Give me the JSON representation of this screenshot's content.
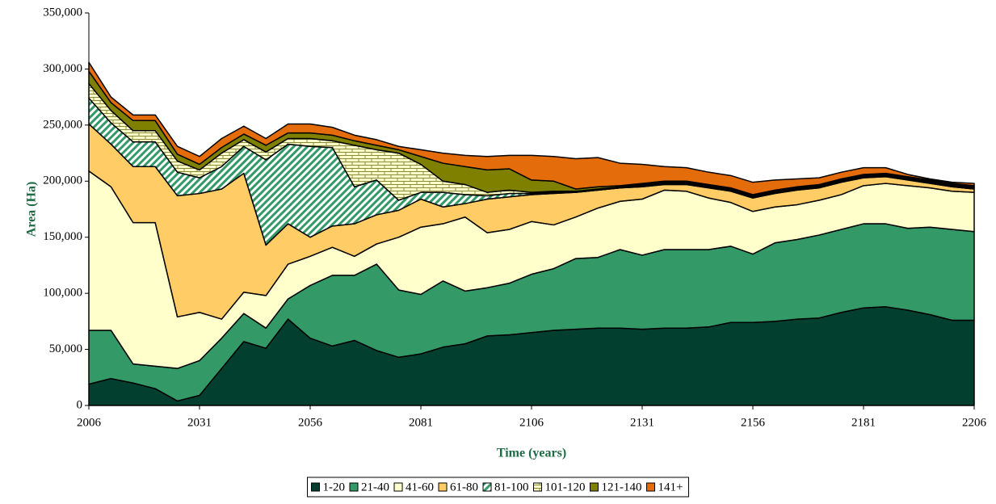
{
  "chart_data": {
    "type": "stacked_area",
    "x_label": "Time (years)",
    "y_label": "Area (Ha)",
    "x": [
      2006,
      2011,
      2016,
      2021,
      2026,
      2031,
      2036,
      2041,
      2046,
      2051,
      2056,
      2061,
      2066,
      2071,
      2076,
      2081,
      2086,
      2091,
      2096,
      2101,
      2106,
      2111,
      2116,
      2121,
      2126,
      2131,
      2136,
      2141,
      2146,
      2151,
      2156,
      2161,
      2166,
      2171,
      2176,
      2181,
      2186,
      2191,
      2196,
      2201,
      2206
    ],
    "xlim": [
      2006,
      2206
    ],
    "xticks": [
      2006,
      2031,
      2056,
      2081,
      2106,
      2131,
      2156,
      2181,
      2206
    ],
    "ylim": [
      0,
      350000
    ],
    "yticks": [
      0,
      {
        "value": 50000,
        "label": "50,000"
      },
      {
        "value": 100000,
        "label": "100,000"
      },
      {
        "value": 150000,
        "label": "150,000"
      },
      {
        "value": 200000,
        "label": "200,000"
      },
      {
        "value": 250000,
        "label": "250,000"
      },
      {
        "value": 300000,
        "label": "300,000"
      },
      {
        "value": 350000,
        "label": "350,000"
      }
    ],
    "legend": "bottom",
    "series": [
      {
        "name": "1-20",
        "color": "#033f2f",
        "values": [
          19000,
          24000,
          20000,
          15000,
          4000,
          9000,
          33000,
          57000,
          51000,
          77000,
          60000,
          53000,
          58000,
          49000,
          43000,
          46000,
          52000,
          55000,
          62000,
          63000,
          65000,
          67000,
          68000,
          69000,
          69000,
          68000,
          69000,
          69000,
          70000,
          74000,
          74000,
          75000,
          77000,
          78000,
          83000,
          87000,
          88000,
          85000,
          81000,
          76000,
          76000
        ]
      },
      {
        "name": "21-40",
        "color": "#339966",
        "values": [
          48000,
          43000,
          17000,
          20000,
          29000,
          31000,
          27000,
          25000,
          18000,
          18000,
          47000,
          63000,
          58000,
          77000,
          60000,
          53000,
          59000,
          47000,
          43000,
          46000,
          52000,
          55000,
          63000,
          63000,
          70000,
          66000,
          70000,
          70000,
          69000,
          68000,
          61000,
          70000,
          71000,
          74000,
          74000,
          75000,
          74000,
          73000,
          78000,
          81000,
          79000
        ]
      },
      {
        "name": "41-60",
        "color": "#ffffcc",
        "values": [
          142000,
          128000,
          126000,
          128000,
          46000,
          43000,
          17000,
          19000,
          29000,
          31000,
          26000,
          25000,
          17000,
          18000,
          47000,
          60000,
          51000,
          66000,
          49000,
          48000,
          47000,
          39000,
          37000,
          44000,
          43000,
          50000,
          53000,
          52000,
          46000,
          39000,
          38000,
          32000,
          31000,
          31000,
          31000,
          34000,
          36000,
          38000,
          35000,
          34000,
          35000
        ]
      },
      {
        "name": "61-80",
        "color": "#ffcc66",
        "values": [
          42000,
          38000,
          50000,
          50000,
          108000,
          106000,
          116000,
          106000,
          45000,
          36000,
          17000,
          19000,
          29000,
          26000,
          24000,
          25000,
          15000,
          12000,
          30000,
          29000,
          24000,
          28000,
          22000,
          16000,
          12000,
          11000,
          5000,
          6000,
          9000,
          10000,
          12000,
          12000,
          13000,
          11000,
          11000,
          7000,
          6000,
          5000,
          4000,
          4000,
          3000
        ]
      },
      {
        "name": "81-100",
        "color": "#339966",
        "pattern": "diagonal",
        "values": [
          23000,
          19000,
          22000,
          22000,
          21000,
          14000,
          20000,
          24000,
          76000,
          71000,
          81000,
          70000,
          33000,
          31000,
          9000,
          6000,
          13000,
          8000,
          3000,
          3000,
          1000,
          1000,
          0,
          0,
          0,
          1000,
          1000,
          1000,
          1000,
          1000,
          1000,
          1000,
          1000,
          1000,
          1000,
          1000,
          1000,
          1000,
          1000,
          1000,
          1000
        ]
      },
      {
        "name": "101-120",
        "color": "#ffffcc",
        "pattern": "brick",
        "values": [
          13000,
          11000,
          10000,
          10000,
          10000,
          7000,
          12000,
          6000,
          7000,
          5000,
          7000,
          6000,
          37000,
          27000,
          42000,
          25000,
          10000,
          9000,
          3000,
          3000,
          1000,
          1000,
          1000,
          1000,
          1000,
          1000,
          1000,
          1000,
          1000,
          1000,
          1000,
          1000,
          1000,
          1000,
          1000,
          1000,
          1000,
          1000,
          1000,
          1000,
          1000
        ]
      },
      {
        "name": "121-140",
        "color": "#808000",
        "values": [
          11000,
          7000,
          9000,
          9000,
          6000,
          5000,
          5000,
          5000,
          6000,
          5000,
          5000,
          5000,
          4000,
          4000,
          3000,
          7000,
          16000,
          16000,
          20000,
          19000,
          11000,
          9000,
          2000,
          2000,
          1000,
          1000,
          1000,
          1000,
          1000,
          1000,
          1000,
          1000,
          1000,
          1000,
          1000,
          1000,
          1000,
          1000,
          1000,
          1000,
          1000
        ]
      },
      {
        "name": "141+",
        "color": "#e46c0a",
        "values": [
          8000,
          5000,
          5000,
          5000,
          7000,
          7000,
          8000,
          7000,
          6000,
          8000,
          8000,
          7000,
          5000,
          5000,
          3000,
          6000,
          9000,
          10000,
          12000,
          12000,
          22000,
          22000,
          27000,
          26000,
          20000,
          17000,
          13000,
          12000,
          11000,
          11000,
          11000,
          9000,
          7000,
          6000,
          6000,
          6000,
          5000,
          2000,
          1000,
          1000,
          2000
        ]
      }
    ]
  }
}
